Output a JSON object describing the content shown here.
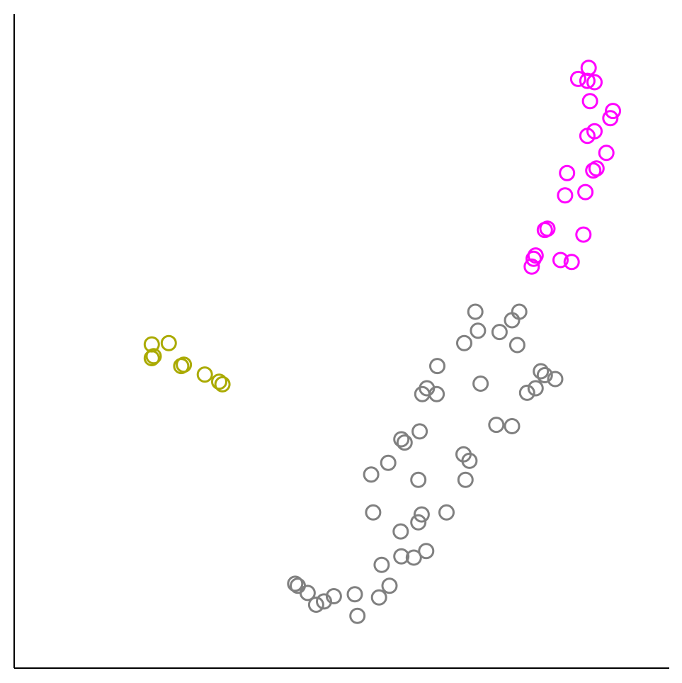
{
  "chart_data": {
    "type": "scatter",
    "title": "",
    "xlabel": "",
    "ylabel": "",
    "xlim": [
      0,
      100
    ],
    "ylim": [
      0,
      100
    ],
    "grid": false,
    "legend": "none",
    "series": [
      {
        "color": "#ff00ff",
        "points": [
          [
            87.7,
            91.8
          ],
          [
            86.1,
            90.1
          ],
          [
            87.5,
            89.8
          ],
          [
            88.6,
            89.6
          ],
          [
            87.9,
            86.7
          ],
          [
            91.4,
            85.2
          ],
          [
            91.0,
            84.1
          ],
          [
            88.6,
            82.1
          ],
          [
            87.5,
            81.4
          ],
          [
            90.4,
            78.8
          ],
          [
            88.9,
            76.4
          ],
          [
            88.4,
            76.1
          ],
          [
            84.4,
            75.7
          ],
          [
            87.2,
            72.8
          ],
          [
            84.1,
            72.3
          ],
          [
            81.4,
            67.2
          ],
          [
            81.0,
            67.0
          ],
          [
            86.9,
            66.3
          ],
          [
            79.6,
            63.1
          ],
          [
            79.3,
            62.6
          ],
          [
            83.4,
            62.4
          ],
          [
            85.1,
            62.1
          ],
          [
            79.0,
            61.4
          ]
        ]
      },
      {
        "color": "#aaaa00",
        "points": [
          [
            21.0,
            49.5
          ],
          [
            23.6,
            49.7
          ],
          [
            21.3,
            47.7
          ],
          [
            21.0,
            47.4
          ],
          [
            25.9,
            46.4
          ],
          [
            25.5,
            46.2
          ],
          [
            29.1,
            44.9
          ],
          [
            31.3,
            43.8
          ],
          [
            31.8,
            43.4
          ]
        ]
      },
      {
        "color": "#808080",
        "points": [
          [
            70.4,
            54.5
          ],
          [
            77.1,
            54.5
          ],
          [
            76.0,
            53.2
          ],
          [
            70.8,
            51.6
          ],
          [
            74.1,
            51.4
          ],
          [
            68.7,
            49.7
          ],
          [
            76.8,
            49.4
          ],
          [
            64.6,
            46.2
          ],
          [
            80.4,
            45.4
          ],
          [
            81.0,
            44.8
          ],
          [
            82.6,
            44.2
          ],
          [
            71.2,
            43.5
          ],
          [
            63.0,
            42.8
          ],
          [
            79.6,
            42.8
          ],
          [
            78.3,
            42.1
          ],
          [
            62.3,
            41.9
          ],
          [
            64.5,
            41.9
          ],
          [
            73.6,
            37.2
          ],
          [
            76.0,
            37.0
          ],
          [
            61.9,
            36.2
          ],
          [
            59.1,
            35.0
          ],
          [
            59.6,
            34.5
          ],
          [
            68.6,
            32.7
          ],
          [
            69.5,
            31.7
          ],
          [
            57.1,
            31.4
          ],
          [
            54.5,
            29.6
          ],
          [
            61.7,
            28.8
          ],
          [
            68.9,
            28.8
          ],
          [
            54.8,
            23.8
          ],
          [
            62.2,
            23.5
          ],
          [
            66.0,
            23.8
          ],
          [
            61.7,
            22.3
          ],
          [
            59.0,
            20.9
          ],
          [
            62.9,
            17.9
          ],
          [
            59.1,
            17.1
          ],
          [
            61.0,
            16.9
          ],
          [
            56.1,
            15.8
          ],
          [
            42.9,
            12.9
          ],
          [
            43.3,
            12.6
          ],
          [
            44.8,
            11.5
          ],
          [
            57.3,
            12.6
          ],
          [
            55.7,
            10.8
          ],
          [
            52.0,
            11.3
          ],
          [
            48.8,
            11.0
          ],
          [
            47.3,
            10.2
          ],
          [
            46.1,
            9.7
          ],
          [
            52.4,
            8.0
          ]
        ]
      }
    ]
  }
}
